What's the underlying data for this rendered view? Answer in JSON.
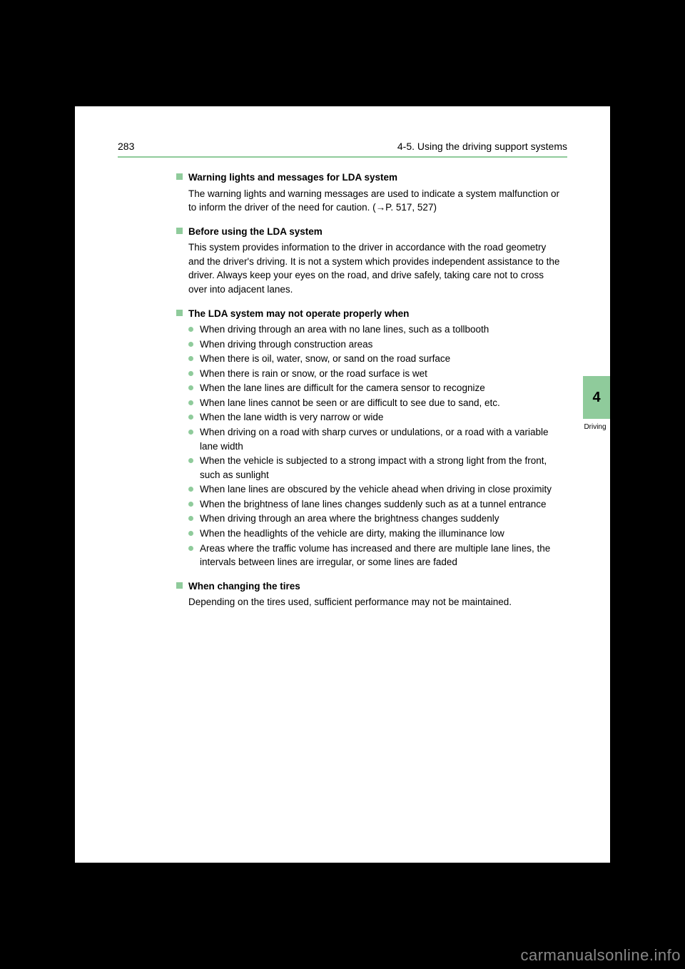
{
  "header": {
    "page_number": "283",
    "section": "4-5. Using the driving support systems"
  },
  "side_tab": {
    "number": "4",
    "label": "Driving"
  },
  "sections": [
    {
      "title": "Warning lights and messages for LDA system",
      "body": "The warning lights and warning messages are used to indicate a system malfunction or to inform the driver of the need for caution. (→P. 517, 527)"
    },
    {
      "title": "Before using the LDA system",
      "body": "This system provides information to the driver in accordance with the road geometry and the driver's driving. It is not a system which provides independent assistance to the driver. Always keep your eyes on the road, and drive safely, taking care not to cross over into adjacent lanes."
    },
    {
      "title": "The LDA system may not operate properly when",
      "bullets": [
        "When driving through an area with no lane lines, such as a tollbooth",
        "When driving through construction areas",
        "When there is oil, water, snow, or sand on the road surface",
        "When there is rain or snow, or the road surface is wet",
        "When the lane lines are difficult for the camera sensor to recognize",
        "When lane lines cannot be seen or are difficult to see due to sand, etc.",
        "When the lane width is very narrow or wide",
        "When driving on a road with sharp curves or undulations, or a road with a variable lane width",
        "When the vehicle is subjected to a strong impact with a strong light from the front, such as sunlight",
        "When lane lines are obscured by the vehicle ahead when driving in close proximity",
        "When the brightness of lane lines changes suddenly such as at a tunnel entrance",
        "When driving through an area where the brightness changes suddenly",
        "When the headlights of the vehicle are dirty, making the illuminance low",
        "Areas where the traffic volume has increased and there are multiple lane lines, the intervals between lines are irregular, or some lines are faded"
      ]
    },
    {
      "title": "When changing the tires",
      "body": "Depending on the tires used, sufficient performance may not be maintained."
    }
  ],
  "watermark": "carmanualsonline.info",
  "colors": {
    "accent": "#8fcb9b",
    "page_bg": "#ffffff",
    "outer_bg": "#000000",
    "text": "#000000"
  }
}
